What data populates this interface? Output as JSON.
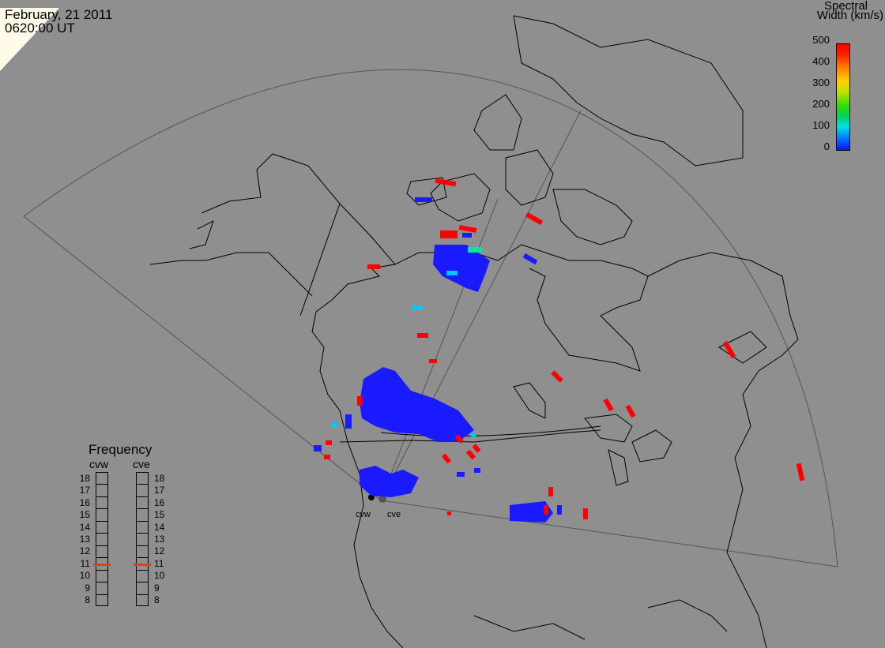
{
  "header": {
    "date": "February, 21 2011",
    "time": "0620:00 UT"
  },
  "colorbar": {
    "title_line1": "Spectral",
    "title_line2": "Width (km/s)",
    "ticks": [
      "500",
      "400",
      "300",
      "200",
      "100",
      "0"
    ]
  },
  "frequency_panel": {
    "title": "Frequency",
    "radars": [
      "cvw",
      "cve"
    ],
    "levels": [
      "18",
      "17",
      "16",
      "15",
      "14",
      "13",
      "12",
      "11",
      "10",
      "9",
      "8"
    ],
    "current_frequency": {
      "cvw": 10.9,
      "cve": 10.9
    }
  },
  "sites": [
    {
      "name": "cvw"
    },
    {
      "name": "cve"
    }
  ],
  "colors": {
    "background": "#8f8f8f",
    "low_width": "#1a1aff",
    "high_width": "#ff0000",
    "mid_cyan": "#00c8ff"
  }
}
